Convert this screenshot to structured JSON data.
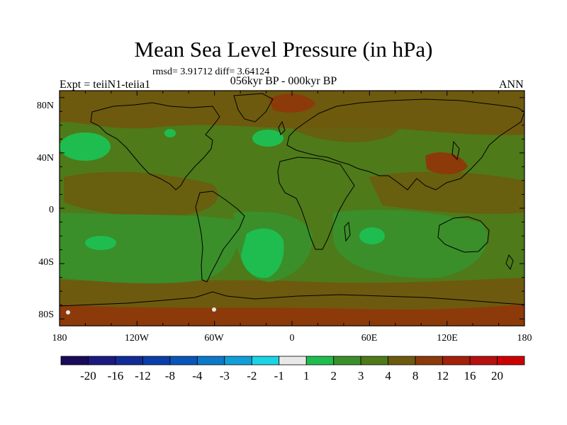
{
  "title": "Mean Sea Level Pressure (in hPa)",
  "stats": "rmsd= 3.91712 diff= 3.64124",
  "left_label": "Expt = teiiN1-teiia1",
  "center_label": "056kyr BP - 000kyr BP",
  "right_label": "ANN",
  "lat_labels": [
    "80N",
    "40N",
    "0",
    "40S",
    "80S"
  ],
  "lon_labels": [
    "180",
    "120W",
    "60W",
    "0",
    "60E",
    "120E",
    "180"
  ],
  "colorbar": {
    "labels": [
      "-20",
      "-16",
      "-12",
      "-8",
      "-4",
      "-3",
      "-2",
      "-1",
      "1",
      "2",
      "3",
      "4",
      "8",
      "12",
      "16",
      "20"
    ],
    "colors": [
      "#1a0a5c",
      "#1c1a80",
      "#122b96",
      "#0b3ea8",
      "#0a56b8",
      "#0c79c9",
      "#109fd8",
      "#1ad4e6",
      "#e8e8e8",
      "#1fbd4f",
      "#3a8f2a",
      "#4e7a1a",
      "#6d5a0e",
      "#8c3a0a",
      "#a3200a",
      "#b71010",
      "#cc0000"
    ]
  }
}
